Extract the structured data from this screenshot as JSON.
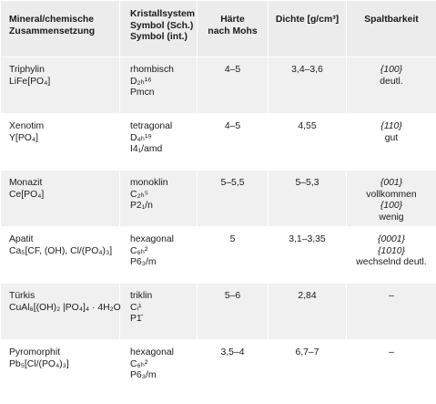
{
  "headers": {
    "mineral": [
      "Mineral/chemische",
      "Zusammensetzung"
    ],
    "system": [
      "Kristallsystem",
      "Symbol (Sch.)",
      "Symbol (int.)"
    ],
    "haerte": [
      "Härte",
      "nach Mohs"
    ],
    "dichte": "Dichte [g/cm³]",
    "spalt": "Spaltbarkeit"
  },
  "rows": [
    {
      "name": "Triphylin",
      "formula": "LiFe[PO₄]",
      "system": "rhombisch",
      "sym_sch": "D₂ₕ¹⁶",
      "sym_int": "Pmcn",
      "haerte": "4–5",
      "dichte": "3,4–3,6",
      "spalt": [
        "{100}",
        "deutl."
      ]
    },
    {
      "name": "Xenotim",
      "formula": "Y[PO₄]",
      "system": "tetragonal",
      "sym_sch": "D₄ₕ¹⁹",
      "sym_int": "I4₁/amd",
      "haerte": "4–5",
      "dichte": "4,55",
      "spalt": [
        "{110}",
        "gut"
      ]
    },
    {
      "name": "Monazit",
      "formula": "Ce[PO₄]",
      "system": "monoklin",
      "sym_sch": "C₂ₕ⁵",
      "sym_int": "P2₁/n",
      "haerte": "5–5,5",
      "dichte": "5–5,3",
      "spalt": [
        "{001}",
        "vollkommen",
        "{100}",
        "wenig"
      ]
    },
    {
      "name": "Apatit",
      "formula": "Ca₅[CF, (OH), Cl/(PO₄)₃]",
      "system": "hexagonal",
      "sym_sch": "C₆ₕ²",
      "sym_int": "P6₃/m",
      "haerte": "5",
      "dichte": "3,1–3,35",
      "spalt": [
        "{0001}",
        "{1010}",
        "wechselnd deutl."
      ]
    },
    {
      "name": "Türkis",
      "formula": "CuAl₆[(OH)₂ |PO₄]₄ · 4H₂O",
      "system": "triklin",
      "sym_sch": "Cᵢ¹",
      "sym_int": "P1̄",
      "haerte": "5–6",
      "dichte": "2,84",
      "spalt": [
        "–"
      ]
    },
    {
      "name": "Pyromorphit",
      "formula": "Pb₅[Cl/(PO₄)₃]",
      "system": "hexagonal",
      "sym_sch": "C₆ₕ²",
      "sym_int": "P6₃/m",
      "haerte": "3,5–4",
      "dichte": "6,7–7",
      "spalt": [
        "–"
      ]
    }
  ]
}
